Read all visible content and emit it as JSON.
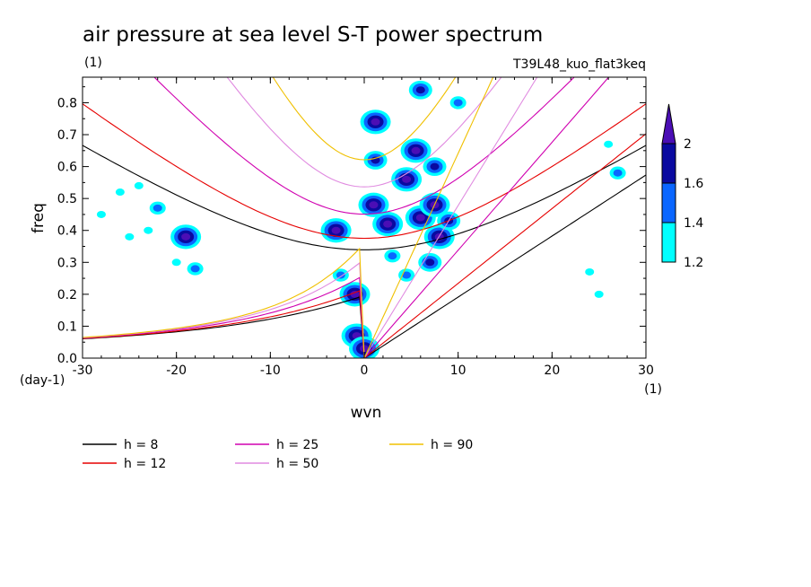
{
  "title": "air pressure at sea level S-T power spectrum",
  "units_left": "(1)",
  "run_label": "T39L48_kuo_flat3keq",
  "chart_data": {
    "type": "heatmap",
    "xlabel": "wvn",
    "ylabel": "freq",
    "x_unit": "(1)",
    "y_unit": "(day-1)",
    "xlim": [
      -30,
      30
    ],
    "ylim": [
      0,
      0.88
    ],
    "xticks": [
      "-30",
      "-20",
      "-10",
      "0",
      "10",
      "20",
      "30"
    ],
    "yticks": [
      "0.0",
      "0.1",
      "0.2",
      "0.3",
      "0.4",
      "0.5",
      "0.6",
      "0.7",
      "0.8"
    ],
    "colorbar": {
      "levels": [
        "1.2",
        "1.4",
        "1.6",
        "2"
      ],
      "colors": [
        "#00ffff",
        "#0a66ff",
        "#0a0aa0",
        "#4b0eb5"
      ]
    },
    "dispersion_curves": [
      {
        "label": "h =  8",
        "h": 8,
        "color": "#000000"
      },
      {
        "label": "h = 12",
        "h": 12,
        "color": "#e60000"
      },
      {
        "label": "h = 25",
        "h": 25,
        "color": "#d000b0"
      },
      {
        "label": "h = 50",
        "h": 50,
        "color": "#e08ae0"
      },
      {
        "label": "h = 90",
        "h": 90,
        "color": "#f0c000"
      }
    ],
    "power_blobs": [
      {
        "x": 1.2,
        "y": 0.74,
        "level": 4
      },
      {
        "x": 1.2,
        "y": 0.62,
        "level": 3
      },
      {
        "x": 1.0,
        "y": 0.48,
        "level": 4
      },
      {
        "x": 2.5,
        "y": 0.42,
        "level": 4
      },
      {
        "x": 4.5,
        "y": 0.56,
        "level": 4
      },
      {
        "x": 5.5,
        "y": 0.65,
        "level": 4
      },
      {
        "x": 6.0,
        "y": 0.44,
        "level": 4
      },
      {
        "x": 8.0,
        "y": 0.38,
        "level": 4
      },
      {
        "x": 7.5,
        "y": 0.48,
        "level": 4
      },
      {
        "x": 9.0,
        "y": 0.43,
        "level": 3
      },
      {
        "x": 7.5,
        "y": 0.6,
        "level": 3
      },
      {
        "x": 7.0,
        "y": 0.3,
        "level": 3
      },
      {
        "x": -3.0,
        "y": 0.4,
        "level": 4
      },
      {
        "x": -1.0,
        "y": 0.2,
        "level": 4
      },
      {
        "x": -0.8,
        "y": 0.07,
        "level": 4
      },
      {
        "x": 0.0,
        "y": 0.03,
        "level": 4
      },
      {
        "x": -2.5,
        "y": 0.26,
        "level": 2
      },
      {
        "x": 6.0,
        "y": 0.84,
        "level": 3
      },
      {
        "x": 10.0,
        "y": 0.8,
        "level": 2
      },
      {
        "x": -19.0,
        "y": 0.38,
        "level": 4
      },
      {
        "x": -18.0,
        "y": 0.28,
        "level": 2
      },
      {
        "x": -22.0,
        "y": 0.47,
        "level": 2
      },
      {
        "x": -26.0,
        "y": 0.52,
        "level": 1
      },
      {
        "x": -25.0,
        "y": 0.38,
        "level": 1
      },
      {
        "x": -28.0,
        "y": 0.45,
        "level": 1
      },
      {
        "x": -23.0,
        "y": 0.4,
        "level": 1
      },
      {
        "x": 27.0,
        "y": 0.58,
        "level": 2
      },
      {
        "x": 24.0,
        "y": 0.27,
        "level": 1
      },
      {
        "x": 25.0,
        "y": 0.2,
        "level": 1
      },
      {
        "x": 26.0,
        "y": 0.67,
        "level": 1
      },
      {
        "x": -24.0,
        "y": 0.54,
        "level": 1
      },
      {
        "x": -20.0,
        "y": 0.3,
        "level": 1
      },
      {
        "x": 3.0,
        "y": 0.32,
        "level": 2
      },
      {
        "x": 4.5,
        "y": 0.26,
        "level": 2
      }
    ]
  }
}
